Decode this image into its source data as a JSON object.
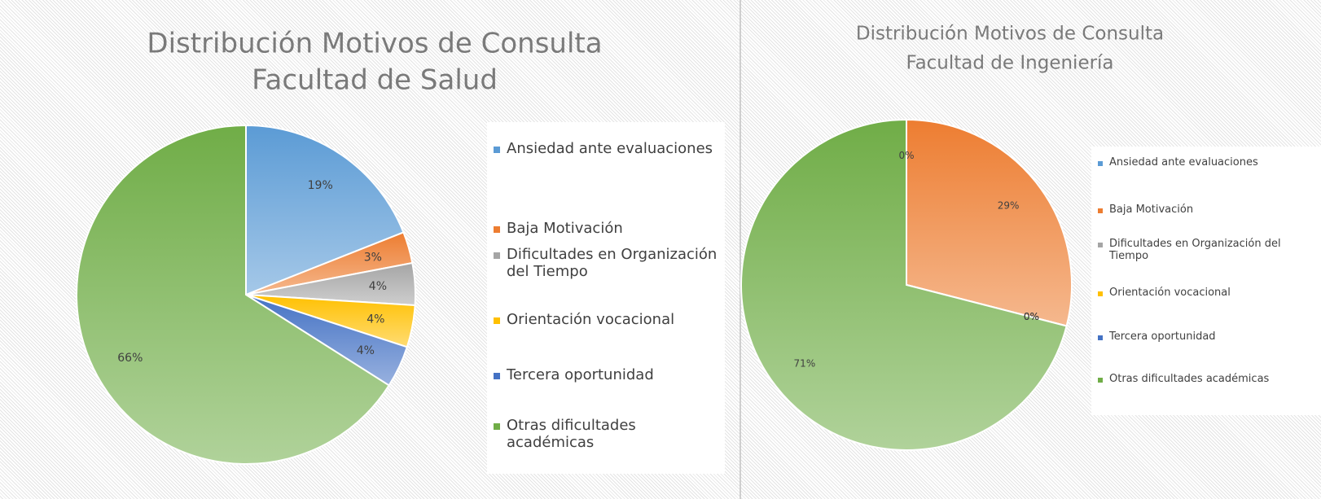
{
  "chart_data": [
    {
      "type": "pie",
      "title": [
        "Distribución Motivos de Consulta",
        "Facultad de Salud"
      ],
      "categories": [
        "Ansiedad ante evaluaciones",
        "Baja Motivación",
        "Dificultades en Organización del Tiempo",
        "Orientación vocacional",
        "Tercera oportunidad",
        "Otras dificultades académicas"
      ],
      "values": [
        19,
        3,
        4,
        4,
        4,
        66
      ],
      "value_labels": [
        "19%",
        "3%",
        "4%",
        "4%",
        "4%",
        "66%"
      ],
      "colors": [
        "#5b9bd5",
        "#ed7d31",
        "#a5a5a5",
        "#ffc000",
        "#4472c4",
        "#70ad47"
      ],
      "legend": "right"
    },
    {
      "type": "pie",
      "title": [
        "Distribución Motivos de Consulta",
        "Facultad de Ingeniería"
      ],
      "categories": [
        "Ansiedad ante evaluaciones",
        "Baja Motivación",
        "Dificultades en Organización del Tiempo",
        "Orientación vocacional",
        "Tercera oportunidad",
        "Otras dificultades académicas"
      ],
      "values": [
        0,
        29,
        0,
        0,
        0,
        71
      ],
      "value_labels": [
        "0%",
        "29%",
        "0%",
        "0%",
        "0%",
        "71%"
      ],
      "colors": [
        "#5b9bd5",
        "#ed7d31",
        "#a5a5a5",
        "#ffc000",
        "#4472c4",
        "#70ad47"
      ],
      "legend": "right"
    }
  ]
}
